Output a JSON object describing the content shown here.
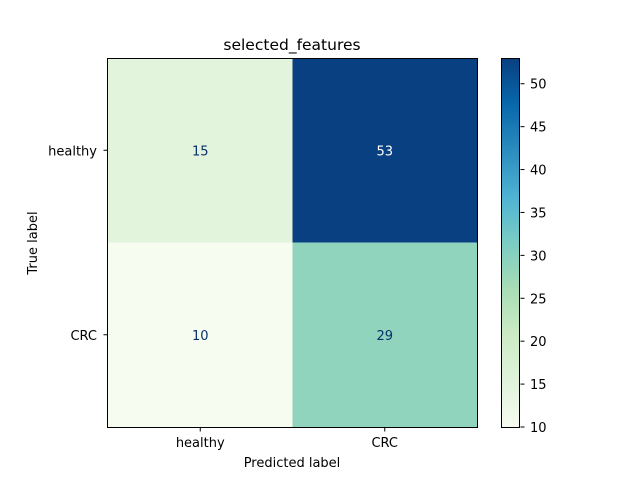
{
  "chart_data": {
    "type": "heatmap",
    "title": "selected_features",
    "xlabel": "Predicted label",
    "ylabel": "True label",
    "x_categories": [
      "healthy",
      "CRC"
    ],
    "y_categories": [
      "healthy",
      "CRC"
    ],
    "values": [
      [
        15,
        53
      ],
      [
        10,
        29
      ]
    ],
    "colormap": "GnBu",
    "colorbar": {
      "range": [
        10,
        53
      ],
      "ticks": [
        10,
        15,
        20,
        25,
        30,
        35,
        40,
        45,
        50
      ]
    },
    "text_colors": {
      "on_light": "#08306b",
      "on_dark": "#ffffff"
    },
    "grid": false,
    "legend": "colorbar-right"
  }
}
